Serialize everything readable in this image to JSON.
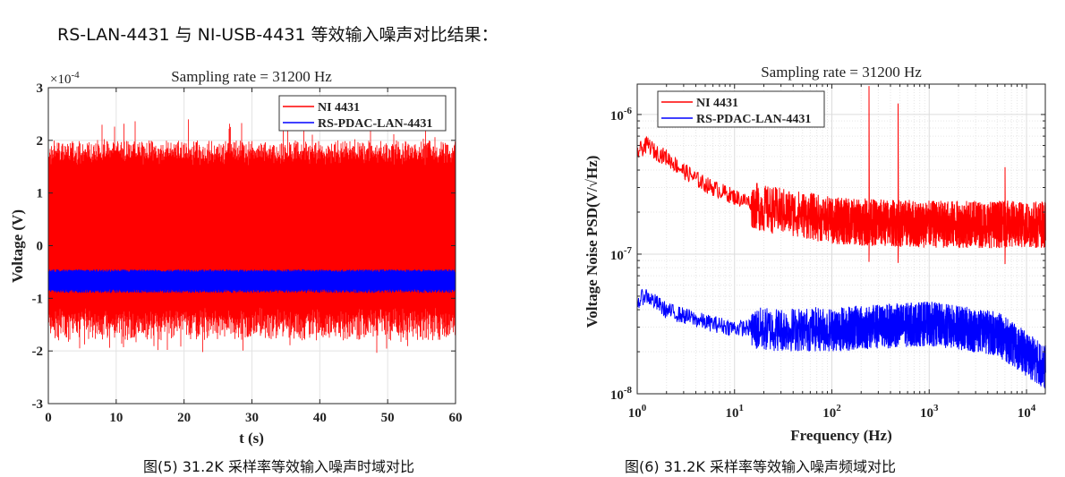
{
  "document": {
    "title": "RS-LAN-4431 与 NI-USB-4431 等效输入噪声对比结果：",
    "caption_left": "图(5) 31.2K 采样率等效输入噪声时域对比",
    "caption_right": "图(6) 31.2K 采样率等效输入噪声频域对比"
  },
  "colors": {
    "ni": "#ff0000",
    "rs": "#0000ff"
  },
  "chart_data": [
    {
      "type": "line",
      "title": "Sampling rate = 31200 Hz",
      "xlabel": "t (s)",
      "ylabel": "Voltage (V)",
      "y_multiplier": "×10",
      "y_multiplier_exp": "-4",
      "xlim": [
        0,
        60
      ],
      "ylim": [
        -3,
        3
      ],
      "xticks": [
        "0",
        "10",
        "20",
        "30",
        "40",
        "50",
        "60"
      ],
      "yticks": [
        "3",
        "2",
        "1",
        "0",
        "-1",
        "-2",
        "-3"
      ],
      "grid": true,
      "legend_position": "top-right",
      "series": [
        {
          "name": "NI 4431",
          "color": "#ff0000",
          "band_min": -1.8,
          "band_max": 2.0,
          "peak_max": 2.5,
          "peak_min": -2.05,
          "mean": 0.1
        },
        {
          "name": "RS-PDAC-LAN-4431",
          "color": "#0000ff",
          "band_min": -0.9,
          "band_max": -0.45,
          "mean": -0.67
        }
      ]
    },
    {
      "type": "line",
      "title": "Sampling rate = 31200 Hz",
      "xlabel": "Frequency (Hz)",
      "ylabel": "Voltage Noise PSD(V/√Hz)",
      "xscale": "log",
      "yscale": "log",
      "xlim": [
        1,
        15600
      ],
      "ylim": [
        1e-08,
        1.65e-06
      ],
      "xticks": [
        {
          "base": "10",
          "exp": "0"
        },
        {
          "base": "10",
          "exp": "1"
        },
        {
          "base": "10",
          "exp": "2"
        },
        {
          "base": "10",
          "exp": "3"
        },
        {
          "base": "10",
          "exp": "4"
        }
      ],
      "yticks": [
        {
          "base": "10",
          "exp": "-6"
        },
        {
          "base": "10",
          "exp": "-7"
        },
        {
          "base": "10",
          "exp": "-8"
        }
      ],
      "grid": true,
      "legend_position": "top-left",
      "series": [
        {
          "name": "NI 4431",
          "color": "#ff0000",
          "x": [
            1,
            1.3,
            1.5,
            2,
            3,
            5,
            10,
            20,
            50,
            100,
            240,
            480,
            1000,
            3000,
            6000,
            15600
          ],
          "y": [
            5.5e-07,
            6.2e-07,
            5.5e-07,
            5e-07,
            4e-07,
            3.2e-07,
            2.6e-07,
            2.2e-07,
            2e-07,
            1.8e-07,
            1.6e-06,
            1.2e-06,
            1.7e-07,
            1.7e-07,
            4.2e-07,
            1.7e-07
          ]
        },
        {
          "name": "RS-PDAC-LAN-4431",
          "color": "#0000ff",
          "x": [
            1,
            1.2,
            2,
            5,
            10,
            100,
            1000,
            5000,
            15600
          ],
          "y": [
            4.5e-08,
            5.2e-08,
            4e-08,
            3.3e-08,
            3e-08,
            3e-08,
            3.3e-08,
            2.8e-08,
            1.6e-08
          ]
        }
      ]
    }
  ]
}
